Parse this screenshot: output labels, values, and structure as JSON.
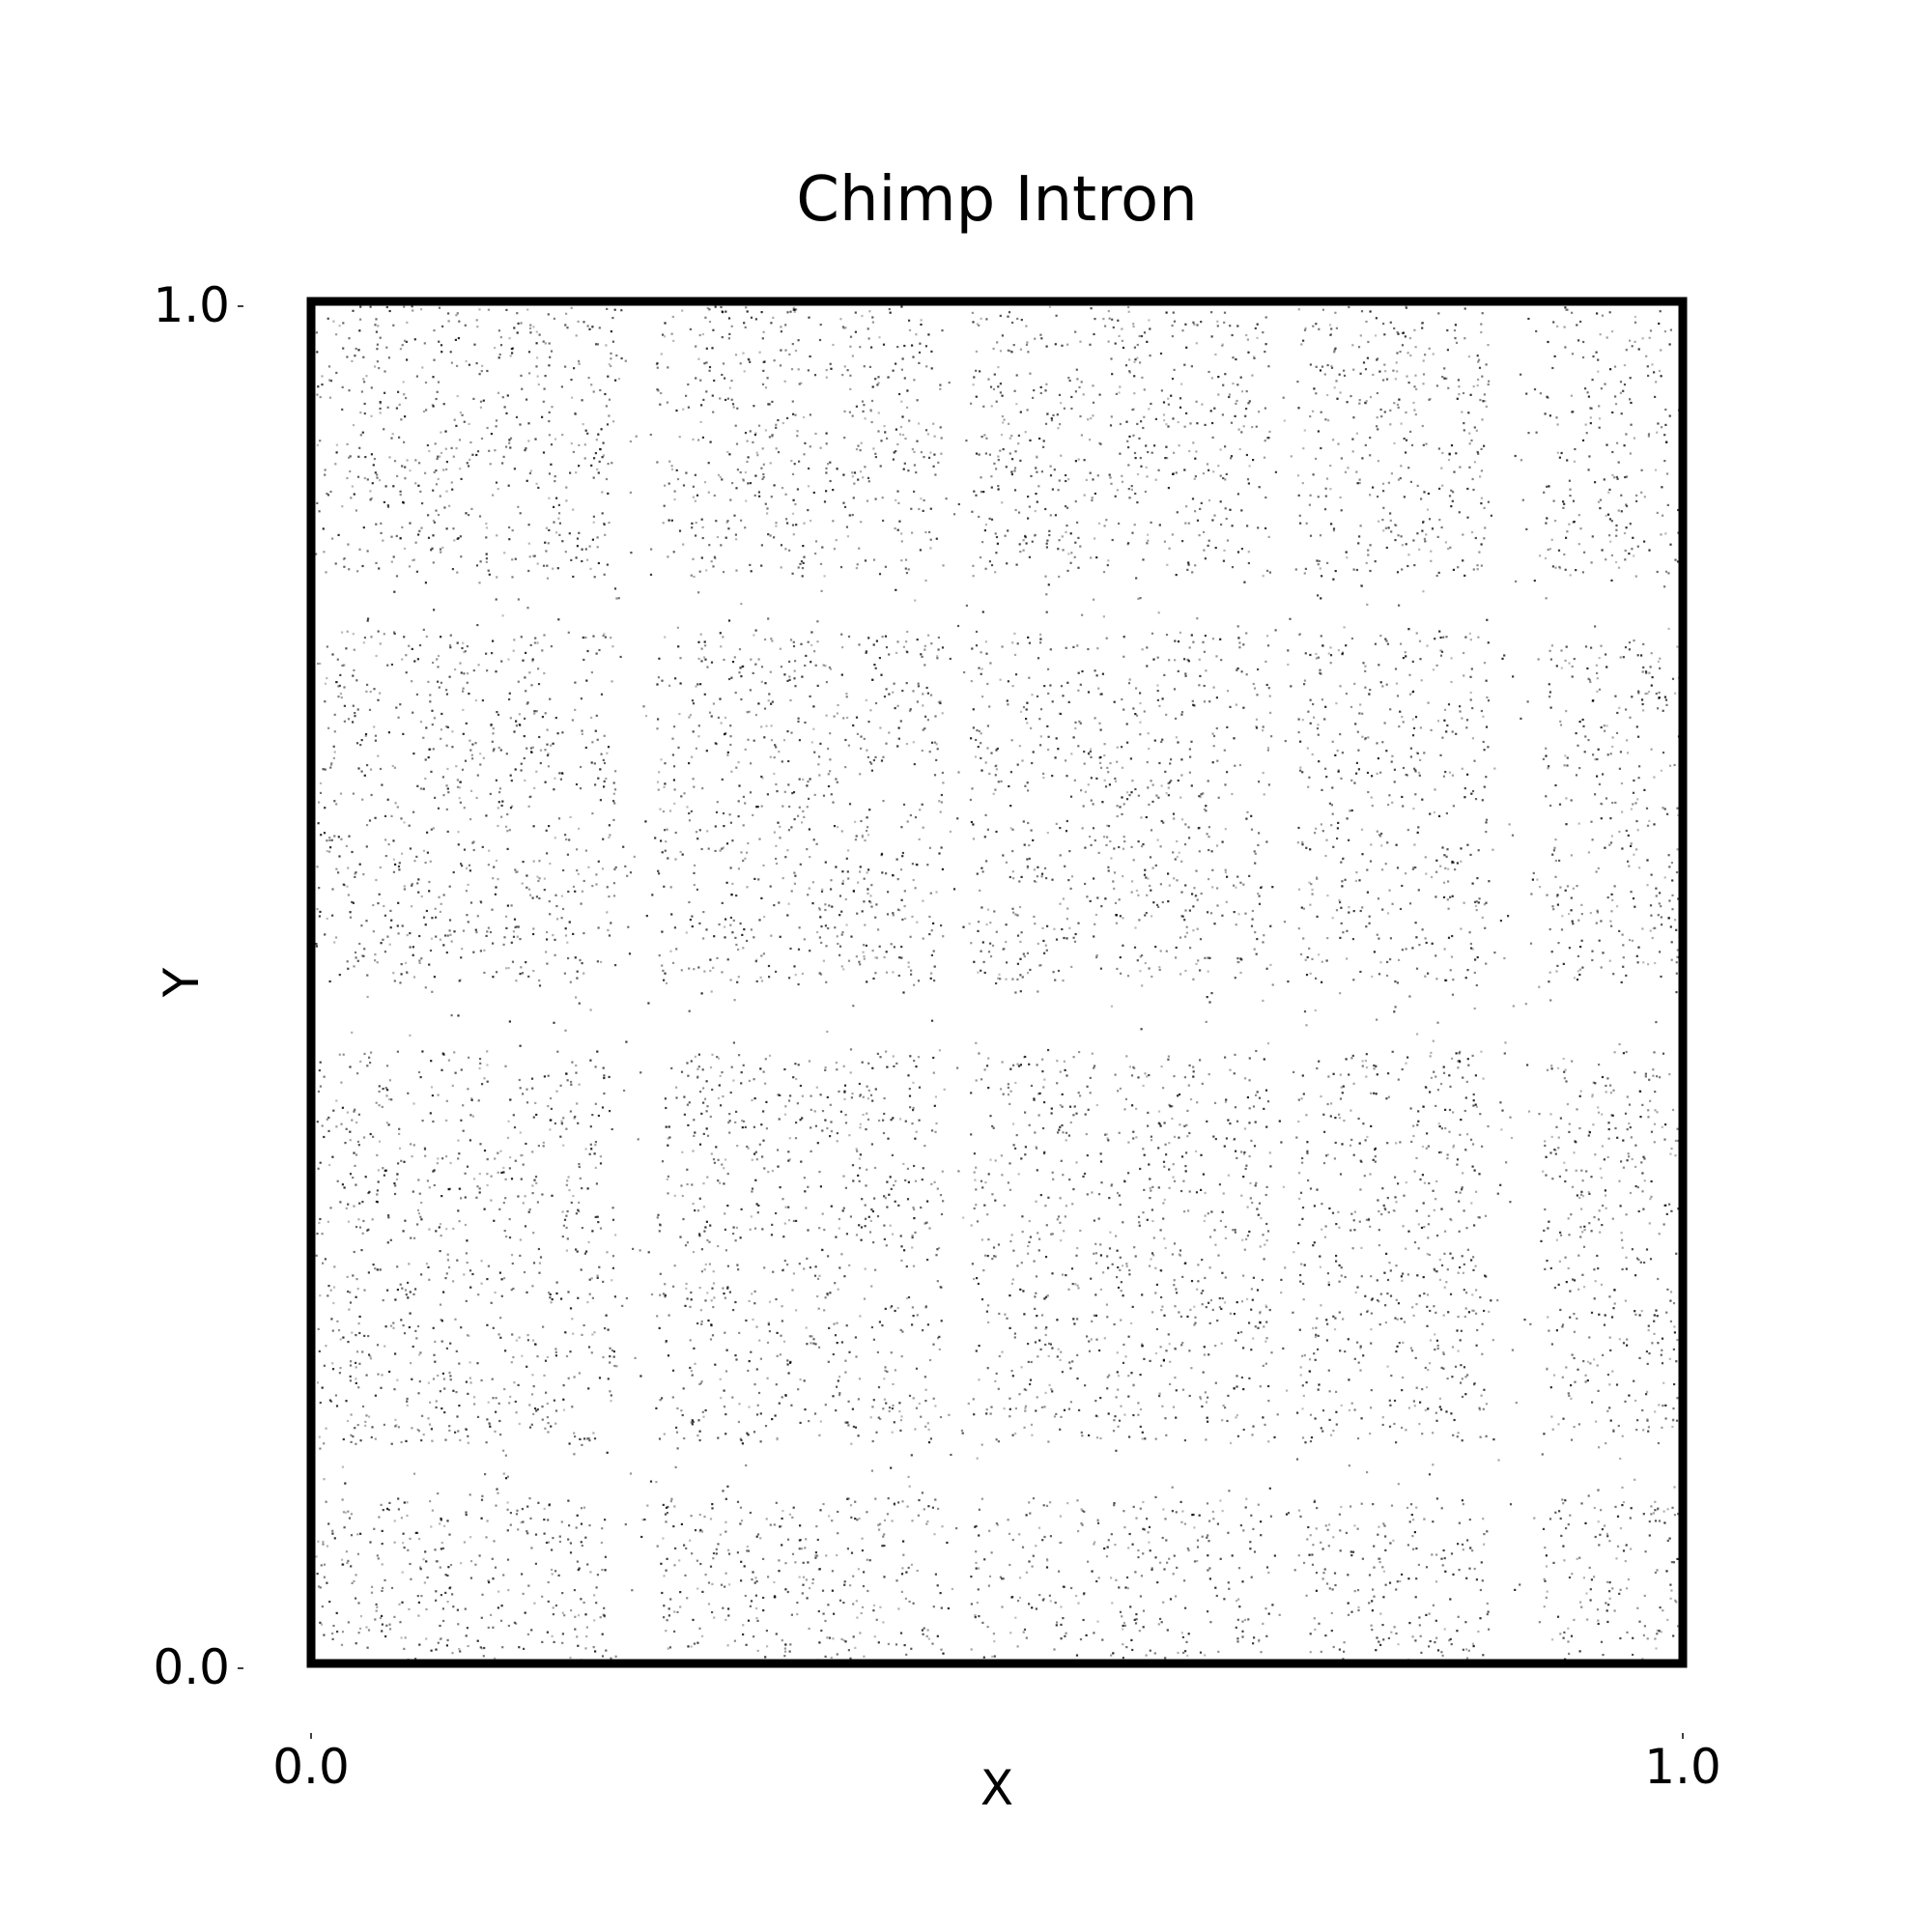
{
  "chart_data": {
    "type": "scatter",
    "title": "Chimp Intron",
    "xlabel": "X",
    "ylabel": "Y",
    "xlim": [
      0.0,
      1.0
    ],
    "ylim": [
      0.0,
      1.0
    ],
    "x_ticks": [
      "0.0",
      "1.0"
    ],
    "y_ticks": [
      "0.0",
      "1.0"
    ],
    "grid": false,
    "marker_color": "#000000",
    "frame_color": "#000000",
    "dense_bands": {
      "x": [
        [
          0.0,
          0.22
        ],
        [
          0.25,
          0.46
        ],
        [
          0.48,
          0.7
        ],
        [
          0.72,
          0.86
        ],
        [
          0.9,
          1.0
        ]
      ],
      "y": [
        [
          0.0,
          0.12
        ],
        [
          0.16,
          0.3
        ],
        [
          0.31,
          0.45
        ],
        [
          0.5,
          0.62
        ],
        [
          0.63,
          0.76
        ],
        [
          0.8,
          1.0
        ]
      ]
    },
    "sparse_bands": {
      "x": [
        [
          0.22,
          0.25
        ],
        [
          0.46,
          0.48
        ],
        [
          0.7,
          0.72
        ],
        [
          0.86,
          0.9
        ]
      ],
      "y": [
        [
          0.12,
          0.16
        ],
        [
          0.45,
          0.5
        ],
        [
          0.76,
          0.8
        ]
      ]
    }
  }
}
